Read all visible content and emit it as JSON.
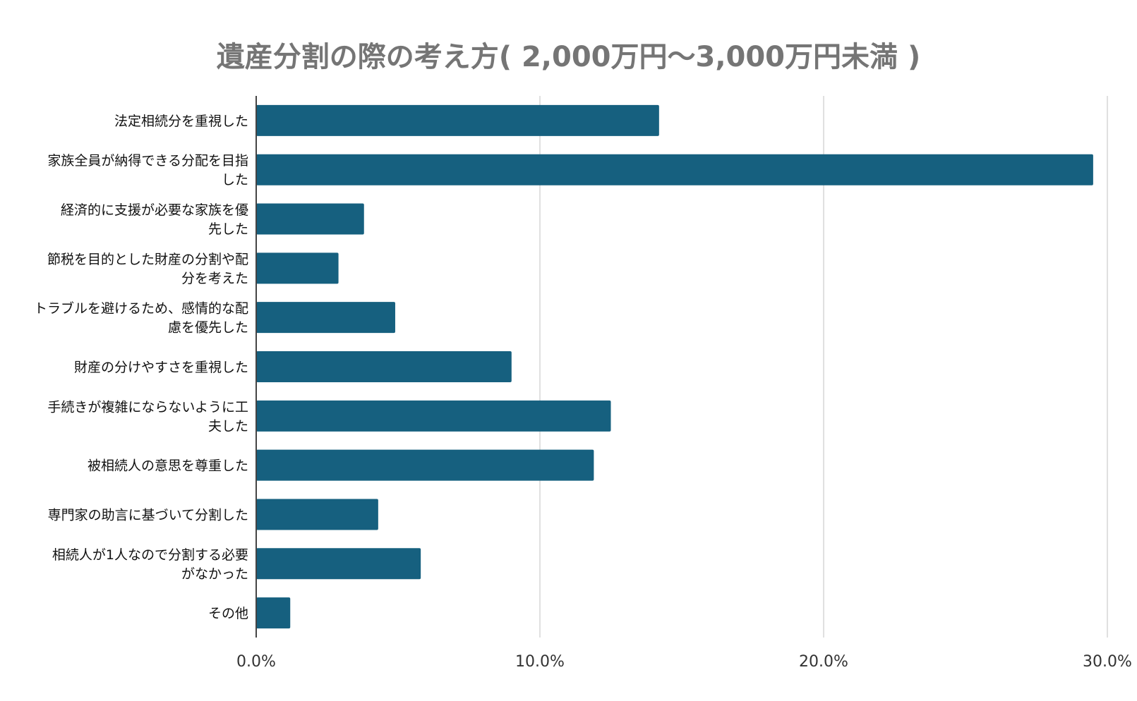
{
  "chart_data": {
    "type": "bar",
    "orientation": "horizontal",
    "title": "遺産分割の際の考え方( 2,000万円～3,000万円未満 )",
    "categories": [
      "法定相続分を重視した",
      "家族全員が納得できる分配を目指した",
      "経済的に支援が必要な家族を優先した",
      "節税を目的とした財産の分割や配分を考えた",
      "トラブルを避けるため、感情的な配慮を優先した",
      "財産の分けやすさを重視した",
      "手続きが複雑にならないように工夫した",
      "被相続人の意思を尊重した",
      "専門家の助言に基づいて分割した",
      "相続人が1人なので分割する必要がなかった",
      "その他"
    ],
    "category_lines": [
      [
        "法定相続分を重視した"
      ],
      [
        "家族全員が納得できる分配を目指",
        "した"
      ],
      [
        "経済的に支援が必要な家族を優",
        "先した"
      ],
      [
        "節税を目的とした財産の分割や配",
        "分を考えた"
      ],
      [
        "トラブルを避けるため、感情的な配",
        "慮を優先した"
      ],
      [
        "財産の分けやすさを重視した"
      ],
      [
        "手続きが複雑にならないように工",
        "夫した"
      ],
      [
        "被相続人の意思を尊重した"
      ],
      [
        "専門家の助言に基づいて分割した"
      ],
      [
        "相続人が1人なので分割する必要",
        "がなかった"
      ],
      [
        "その他"
      ]
    ],
    "values": [
      14.2,
      29.5,
      3.8,
      2.9,
      4.9,
      9.0,
      12.5,
      11.9,
      4.3,
      5.8,
      1.2
    ],
    "unit": "%",
    "xlim": [
      0,
      30
    ],
    "xticks": [
      0,
      10,
      20,
      30
    ],
    "xtick_labels": [
      "0.0%",
      "10.0%",
      "20.0%",
      "30.0%"
    ],
    "grid": true,
    "bar_color": "#16607f",
    "grid_color": "#d6d6d6",
    "axis_color": "#444444",
    "title_color": "#757575"
  }
}
